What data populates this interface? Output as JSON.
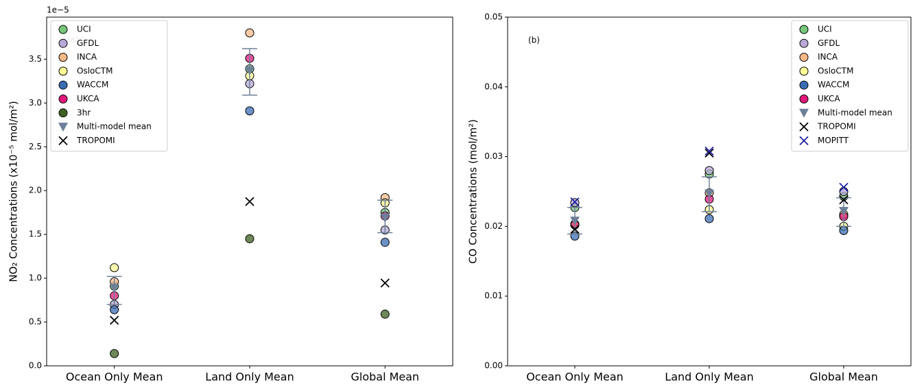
{
  "chart_data": [
    {
      "type": "scatter",
      "panel_label": "(a)",
      "offset_text": "1e−5",
      "ylabel": "NO₂ Concentrations (x10⁻⁵ mol/m²)",
      "categories": [
        "Ocean Only Mean",
        "Land Only Mean",
        "Global Mean"
      ],
      "ylim": [
        0,
        3.98
      ],
      "yticks": [
        {
          "value": 0,
          "label": "0.0"
        },
        0.5,
        {
          "value": 1,
          "label": "1.0"
        },
        1.5,
        {
          "value": 2,
          "label": "2.0"
        },
        2.5,
        {
          "value": 3,
          "label": "3.0"
        },
        3.5
      ],
      "legend": "upper left",
      "series": [
        {
          "name": "UCI",
          "marker": "o",
          "color": "#77c67a",
          "values": [
            0.91,
            3.39,
            1.75
          ]
        },
        {
          "name": "GFDL",
          "marker": "o",
          "color": "#b8a9d6",
          "values": [
            0.7,
            3.22,
            1.55
          ]
        },
        {
          "name": "INCA",
          "marker": "o",
          "color": "#f7b987",
          "values": [
            0.96,
            3.8,
            1.92
          ]
        },
        {
          "name": "OsloCTM",
          "marker": "o",
          "color": "#fafa96",
          "values": [
            1.12,
            3.31,
            1.86
          ]
        },
        {
          "name": "WACCM",
          "marker": "o",
          "color": "#3b6db4",
          "values": [
            0.64,
            2.91,
            1.41
          ]
        },
        {
          "name": "UKCA",
          "marker": "o",
          "color": "#e0197b",
          "values": [
            0.8,
            3.51,
            1.71
          ]
        },
        {
          "name": "3hr",
          "marker": "o",
          "color": "#3e5f22",
          "values": [
            0.14,
            1.45,
            0.59
          ]
        },
        {
          "name": "Multi-model mean",
          "marker": "v",
          "color": "#6e8099",
          "values": [
            0.89,
            3.37,
            1.69
          ],
          "low": [
            0.7,
            3.09,
            1.52
          ],
          "high": [
            1.02,
            3.62,
            1.89
          ]
        },
        {
          "name": "TROPOMI",
          "marker": "x",
          "color": "#000000",
          "values": [
            0.52,
            1.875,
            0.945
          ]
        }
      ]
    },
    {
      "type": "scatter",
      "panel_label": "(b)",
      "ylabel": "CO Concentrations (mol/m²)",
      "categories": [
        "Ocean Only Mean",
        "Land Only Mean",
        "Global Mean"
      ],
      "ylim": [
        0,
        0.05
      ],
      "yticks": [
        {
          "value": 0,
          "label": "0.00"
        },
        {
          "value": 0.01,
          "label": "0.01"
        },
        {
          "value": 0.02,
          "label": "0.02"
        },
        {
          "value": 0.03,
          "label": "0.03"
        },
        {
          "value": 0.04,
          "label": "0.04"
        },
        {
          "value": 0.05,
          "label": "0.05"
        }
      ],
      "legend": "upper right",
      "series": [
        {
          "name": "UCI",
          "marker": "o",
          "color": "#77c67a",
          "values": [
            0.0227,
            0.0275,
            0.0243
          ]
        },
        {
          "name": "GFDL",
          "marker": "o",
          "color": "#b8a9d6",
          "values": [
            0.0234,
            0.028,
            0.025
          ]
        },
        {
          "name": "INCA",
          "marker": "o",
          "color": "#f7b987",
          "values": [
            0.0203,
            0.0248,
            0.0217
          ]
        },
        {
          "name": "OsloCTM",
          "marker": "o",
          "color": "#fafa96",
          "values": [
            0.0203,
            0.0224,
            0.02
          ]
        },
        {
          "name": "WACCM",
          "marker": "o",
          "color": "#3b6db4",
          "values": [
            0.0186,
            0.0211,
            0.0194
          ]
        },
        {
          "name": "UKCA",
          "marker": "o",
          "color": "#e0197b",
          "values": [
            0.0202,
            0.0239,
            0.0214
          ]
        },
        {
          "name": "Multi-model mean",
          "marker": "v",
          "color": "#6e8099",
          "values": [
            0.0208,
            0.0247,
            0.0222
          ],
          "low": [
            0.0189,
            0.0221,
            0.02
          ],
          "high": [
            0.0227,
            0.0271,
            0.0241
          ]
        },
        {
          "name": "TROPOMI",
          "marker": "x",
          "color": "#000000",
          "values": [
            0.0196,
            0.0305,
            0.0238
          ]
        },
        {
          "name": "MOPITT",
          "marker": "x",
          "color": "#1f1fa0",
          "values": [
            0.0235,
            0.0308,
            0.0256
          ]
        }
      ]
    }
  ]
}
